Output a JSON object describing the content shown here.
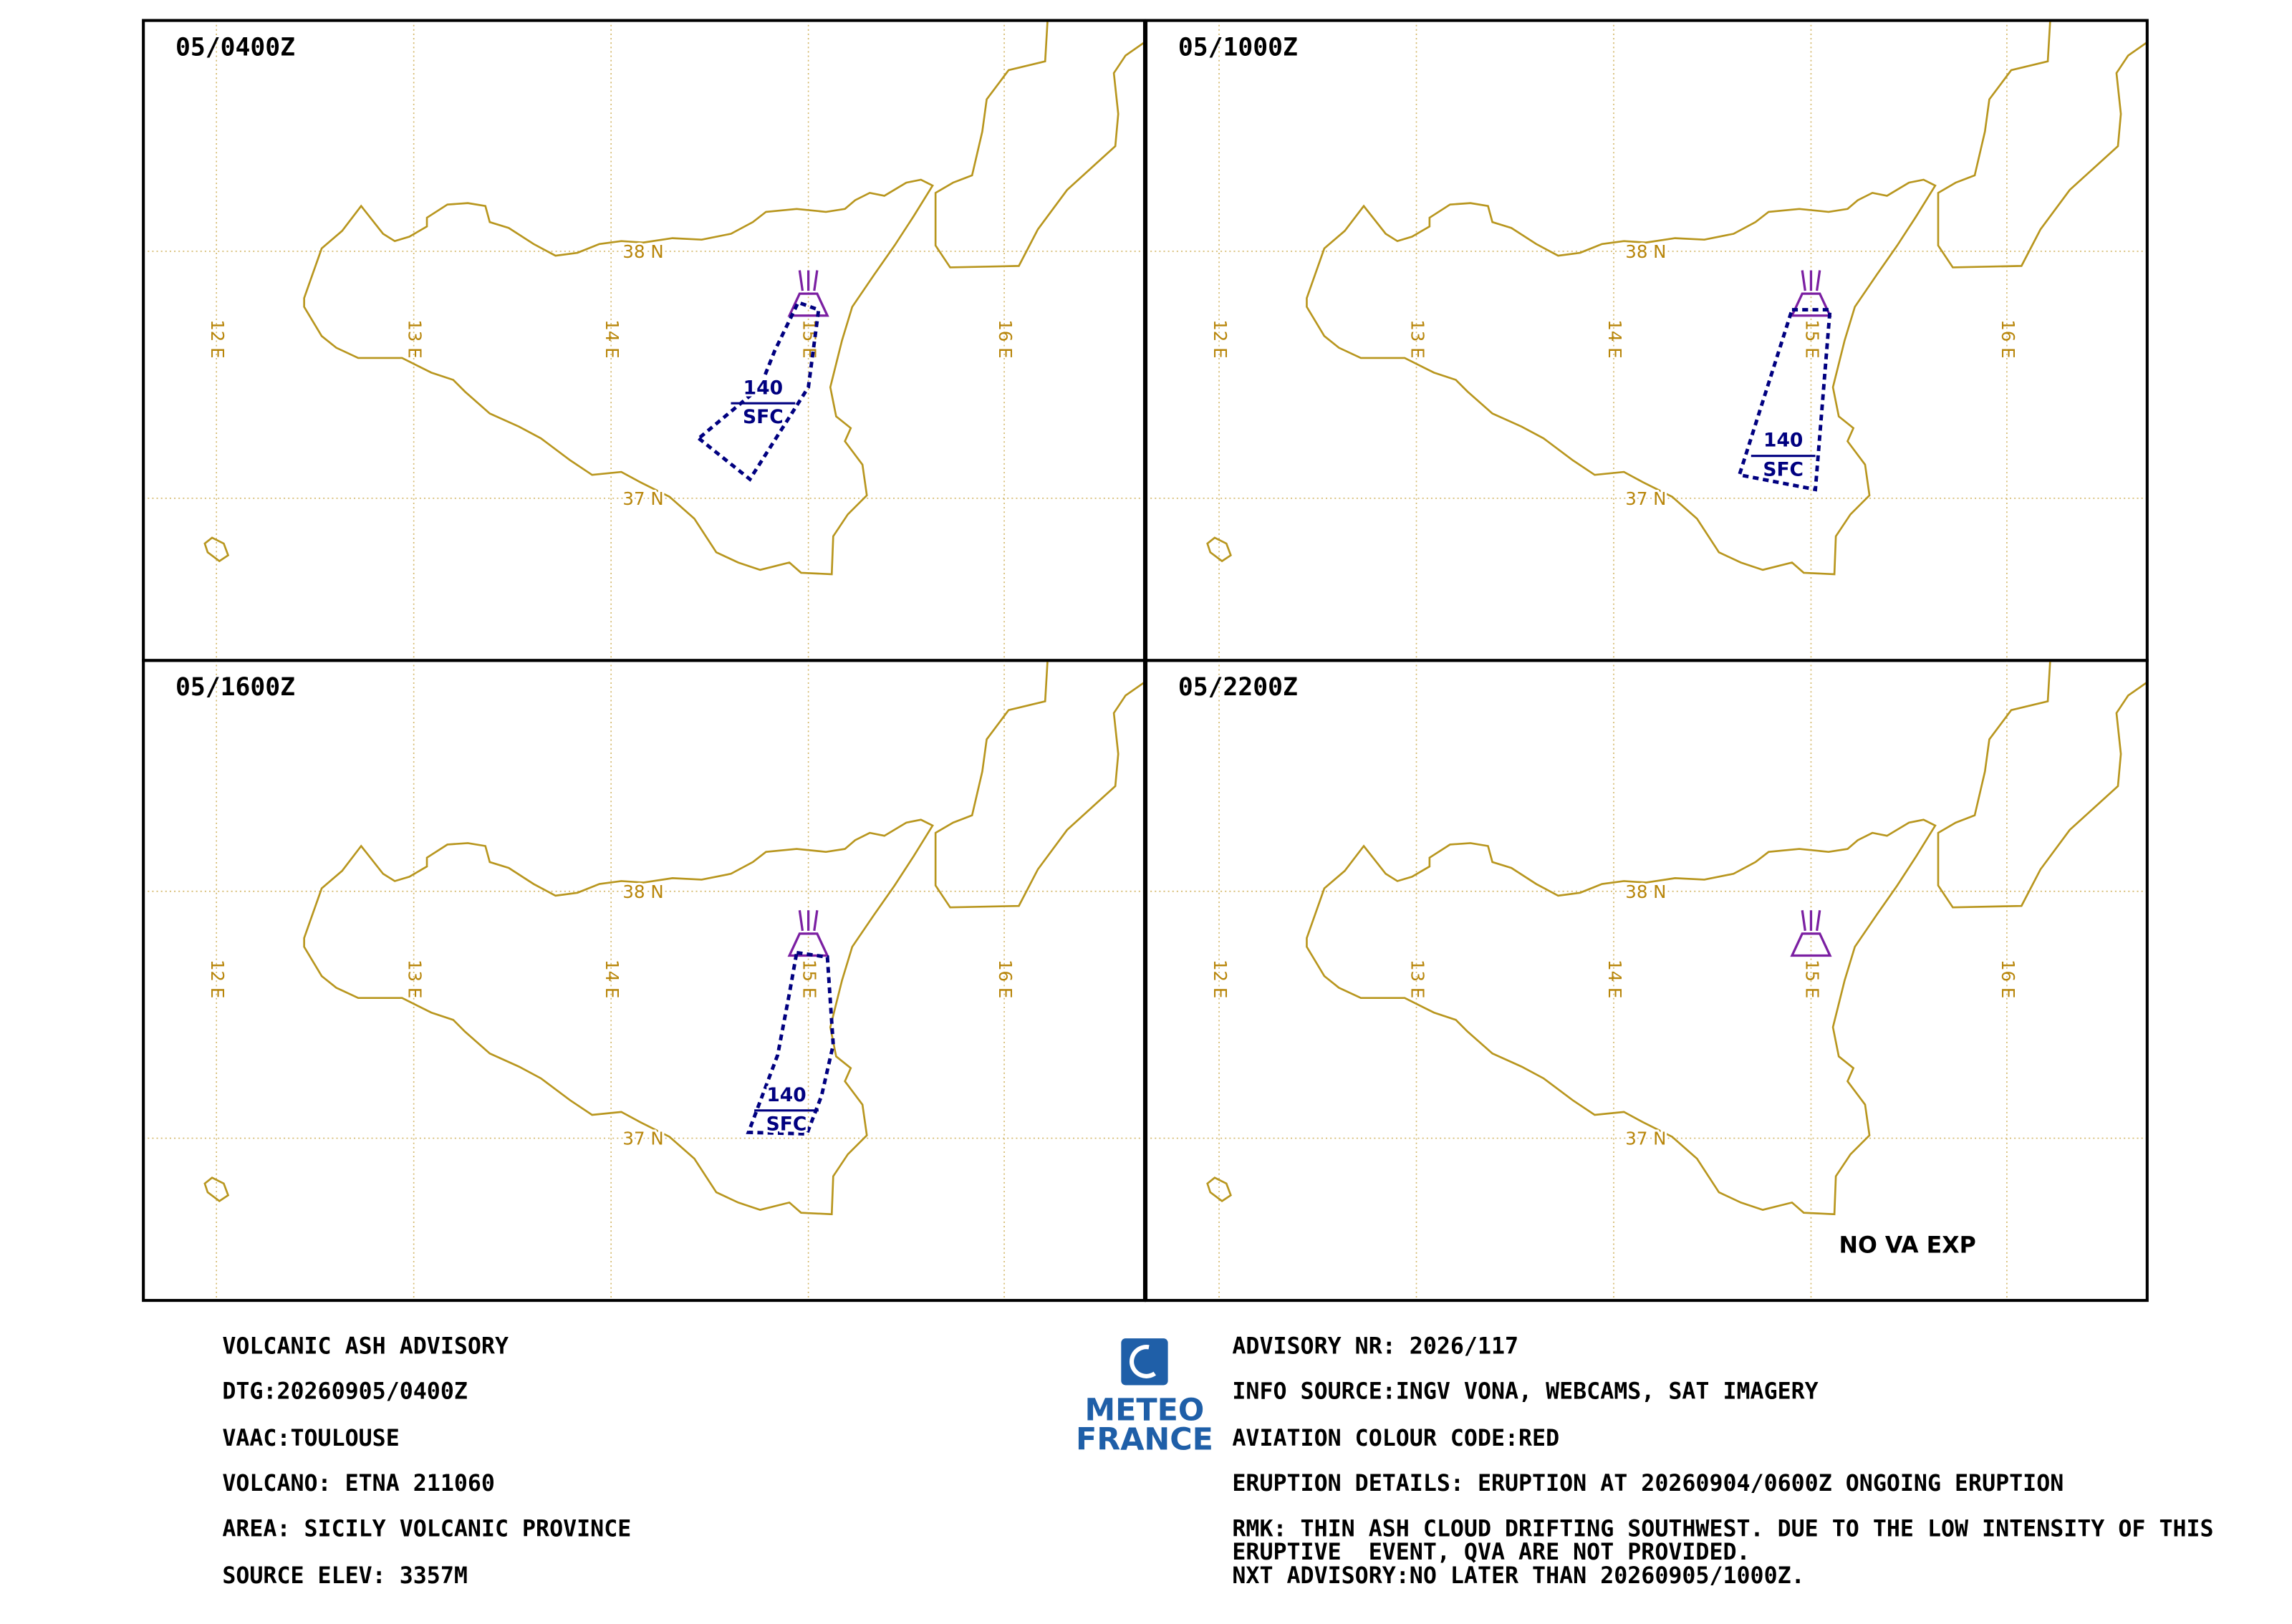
{
  "panels": [
    {
      "time": "05/0400Z",
      "cloud": {
        "top": "140",
        "base": "SFC"
      }
    },
    {
      "time": "05/1000Z",
      "cloud": {
        "top": "140",
        "base": "SFC"
      }
    },
    {
      "time": "05/1600Z",
      "cloud": {
        "top": "140",
        "base": "SFC"
      }
    },
    {
      "time": "05/2200Z",
      "note": "NO VA EXP"
    }
  ],
  "grid": {
    "lon": [
      "12 E",
      "13 E",
      "14 E",
      "15 E",
      "16 E"
    ],
    "lat": [
      "38 N",
      "37 N"
    ]
  },
  "advisory": {
    "left": [
      "VOLCANIC ASH ADVISORY",
      "DTG:20260905/0400Z",
      "VAAC:TOULOUSE",
      "VOLCANO: ETNA 211060",
      "AREA: SICILY VOLCANIC PROVINCE",
      "SOURCE ELEV: 3357M"
    ],
    "right": [
      "ADVISORY NR: 2026/117",
      "INFO SOURCE:INGV VONA, WEBCAMS, SAT IMAGERY",
      "AVIATION COLOUR CODE:RED",
      "ERUPTION DETAILS: ERUPTION AT 20260904/0600Z ONGOING ERUPTION"
    ],
    "rmk": [
      "RMK: THIN ASH CLOUD DRIFTING SOUTHWEST. DUE TO THE LOW INTENSITY OF THIS",
      "ERUPTIVE  EVENT, QVA ARE NOT PROVIDED."
    ],
    "next": "NXT ADVISORY:NO LATER THAN 20260905/1000Z."
  },
  "logo": [
    "METEO",
    "FRANCE"
  ]
}
